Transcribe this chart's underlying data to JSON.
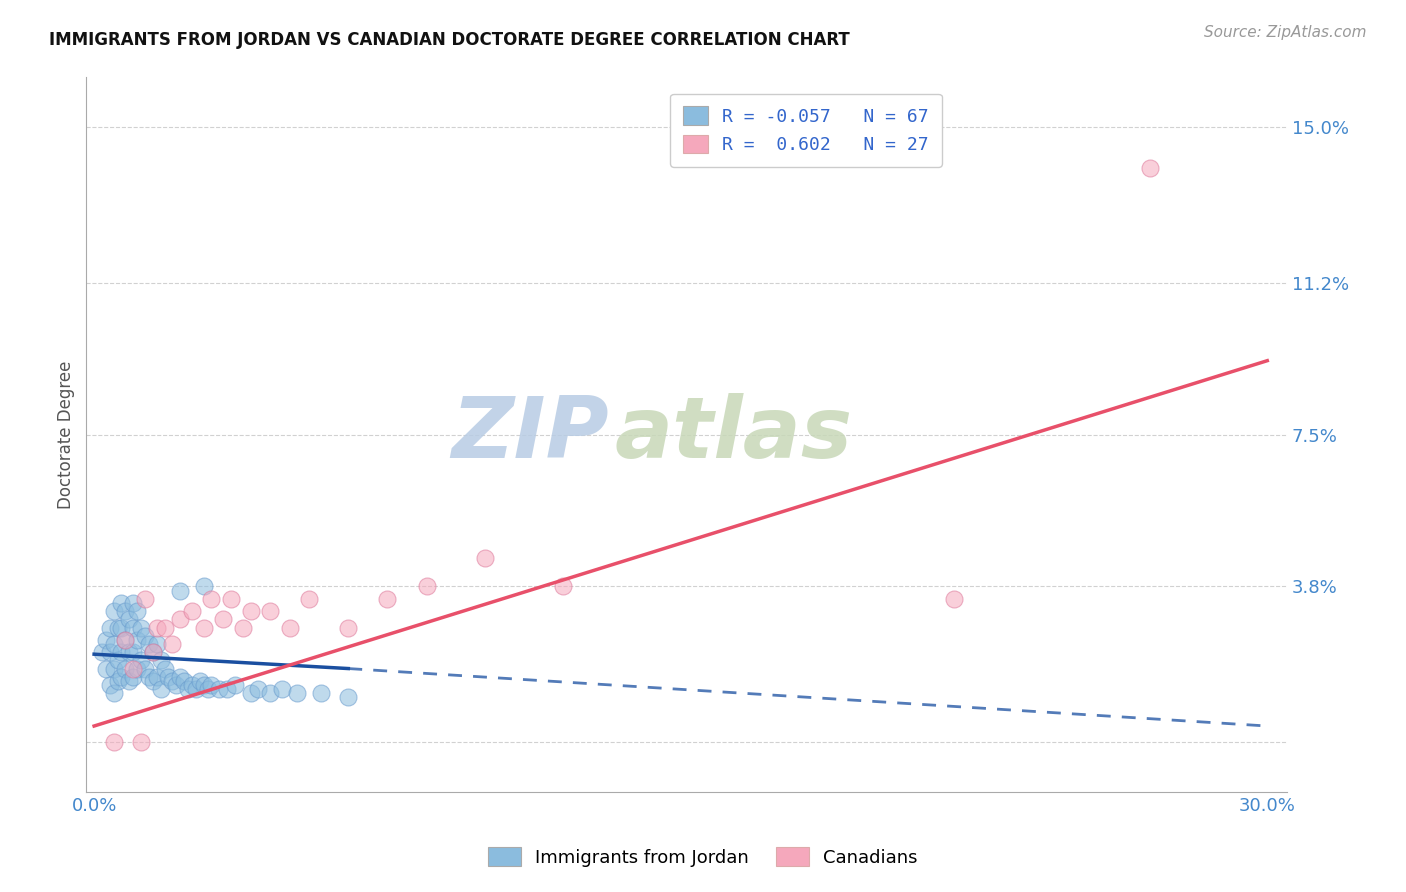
{
  "title": "IMMIGRANTS FROM JORDAN VS CANADIAN DOCTORATE DEGREE CORRELATION CHART",
  "source": "Source: ZipAtlas.com",
  "ylabel": "Doctorate Degree",
  "xlim": [
    -0.002,
    0.305
  ],
  "ylim": [
    -0.012,
    0.162
  ],
  "yticks": [
    0.0,
    0.038,
    0.075,
    0.112,
    0.15
  ],
  "ytick_labels": [
    "",
    "3.8%",
    "7.5%",
    "11.2%",
    "15.0%"
  ],
  "xticks": [
    0.0,
    0.05,
    0.1,
    0.15,
    0.2,
    0.25,
    0.3
  ],
  "xtick_labels": [
    "0.0%",
    "",
    "",
    "",
    "",
    "",
    "30.0%"
  ],
  "grid_color": "#cccccc",
  "bg_color": "#ffffff",
  "blue_color": "#8bbcde",
  "pink_color": "#f5a8bc",
  "blue_line_color": "#1a4fa0",
  "pink_line_color": "#e8506a",
  "R_blue": -0.057,
  "N_blue": 67,
  "R_pink": 0.602,
  "N_pink": 27,
  "legend_label_blue": "Immigrants from Jordan",
  "legend_label_pink": "Canadians",
  "blue_scatter_x": [
    0.002,
    0.003,
    0.003,
    0.004,
    0.004,
    0.004,
    0.005,
    0.005,
    0.005,
    0.005,
    0.006,
    0.006,
    0.006,
    0.007,
    0.007,
    0.007,
    0.007,
    0.008,
    0.008,
    0.008,
    0.009,
    0.009,
    0.009,
    0.01,
    0.01,
    0.01,
    0.01,
    0.011,
    0.011,
    0.011,
    0.012,
    0.012,
    0.013,
    0.013,
    0.014,
    0.014,
    0.015,
    0.015,
    0.016,
    0.016,
    0.017,
    0.017,
    0.018,
    0.019,
    0.02,
    0.021,
    0.022,
    0.023,
    0.024,
    0.025,
    0.026,
    0.027,
    0.028,
    0.029,
    0.03,
    0.032,
    0.034,
    0.036,
    0.04,
    0.042,
    0.045,
    0.048,
    0.052,
    0.058,
    0.065,
    0.022,
    0.028
  ],
  "blue_scatter_y": [
    0.022,
    0.018,
    0.025,
    0.014,
    0.022,
    0.028,
    0.012,
    0.018,
    0.024,
    0.032,
    0.015,
    0.02,
    0.028,
    0.016,
    0.022,
    0.028,
    0.034,
    0.018,
    0.025,
    0.032,
    0.015,
    0.022,
    0.03,
    0.016,
    0.022,
    0.028,
    0.034,
    0.018,
    0.025,
    0.032,
    0.02,
    0.028,
    0.018,
    0.026,
    0.016,
    0.024,
    0.015,
    0.022,
    0.016,
    0.024,
    0.013,
    0.02,
    0.018,
    0.016,
    0.015,
    0.014,
    0.016,
    0.015,
    0.013,
    0.014,
    0.013,
    0.015,
    0.014,
    0.013,
    0.014,
    0.013,
    0.013,
    0.014,
    0.012,
    0.013,
    0.012,
    0.013,
    0.012,
    0.012,
    0.011,
    0.037,
    0.038
  ],
  "pink_scatter_x": [
    0.005,
    0.008,
    0.01,
    0.012,
    0.013,
    0.015,
    0.016,
    0.018,
    0.02,
    0.022,
    0.025,
    0.028,
    0.03,
    0.033,
    0.035,
    0.038,
    0.04,
    0.045,
    0.05,
    0.055,
    0.065,
    0.075,
    0.085,
    0.1,
    0.12,
    0.22,
    0.27
  ],
  "pink_scatter_y": [
    0.0,
    0.025,
    0.018,
    0.0,
    0.035,
    0.022,
    0.028,
    0.028,
    0.024,
    0.03,
    0.032,
    0.028,
    0.035,
    0.03,
    0.035,
    0.028,
    0.032,
    0.032,
    0.028,
    0.035,
    0.028,
    0.035,
    0.038,
    0.045,
    0.038,
    0.035,
    0.14
  ],
  "watermark_line1": "ZIP",
  "watermark_line2": "atlas",
  "watermark_color": "#c8d8ee",
  "title_fontsize": 12,
  "source_fontsize": 11,
  "tick_fontsize": 13,
  "ylabel_fontsize": 12
}
